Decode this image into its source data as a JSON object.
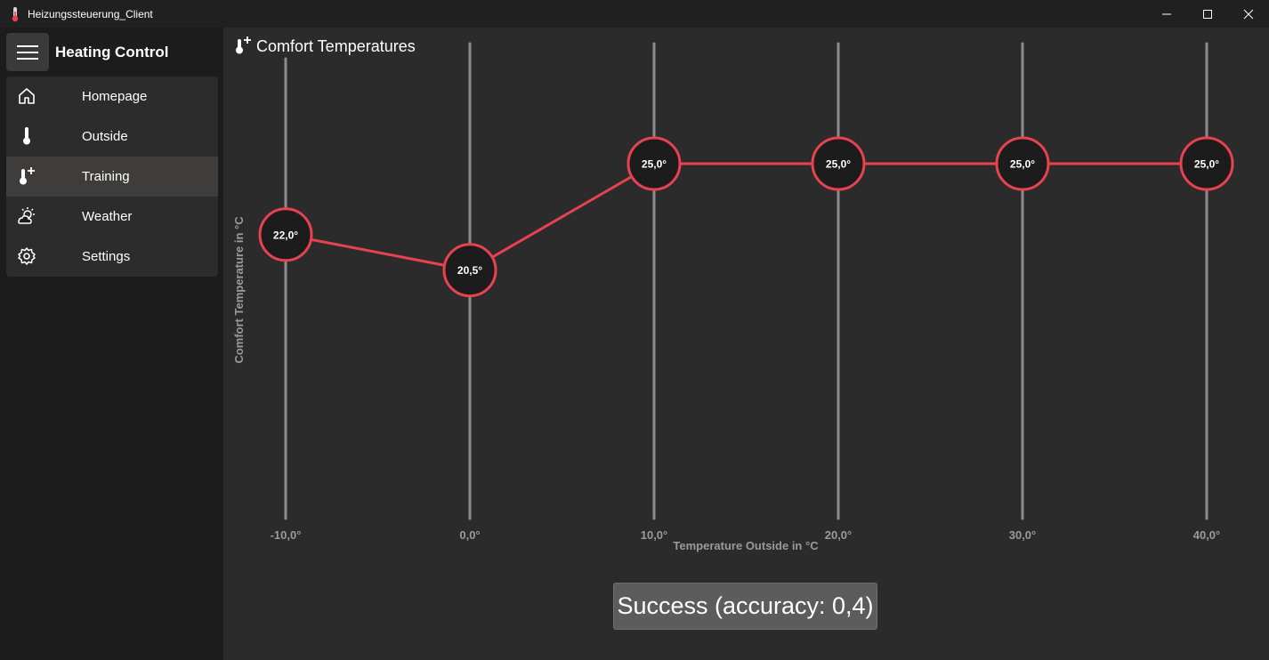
{
  "window": {
    "title": "Heizungssteuerung_Client",
    "controls": [
      "minimize",
      "maximize",
      "close"
    ]
  },
  "sidebar": {
    "app_name": "Heating Control",
    "items": [
      {
        "label": "Homepage",
        "icon": "home-icon",
        "active": false
      },
      {
        "label": "Outside",
        "icon": "thermometer-icon",
        "active": false
      },
      {
        "label": "Training",
        "icon": "thermometer-plus-icon",
        "active": true
      },
      {
        "label": "Weather",
        "icon": "weather-icon",
        "active": false
      },
      {
        "label": "Settings",
        "icon": "gear-icon",
        "active": false
      }
    ]
  },
  "main": {
    "title": "Comfort Temperatures",
    "status": "Success (accuracy: 0,4)"
  },
  "colors": {
    "accent": "#e8414f",
    "track": "#8c8c8c",
    "background": "#2b2b2b"
  },
  "chart_data": {
    "type": "line",
    "x": [
      -10,
      0,
      10,
      20,
      30,
      40
    ],
    "x_tick_labels": [
      "-10,0°",
      "0,0°",
      "10,0°",
      "20,0°",
      "30,0°",
      "40,0°"
    ],
    "series": [
      {
        "values": [
          22.0,
          20.5,
          25.0,
          25.0,
          25.0,
          25.0
        ],
        "point_labels": [
          "22,0°",
          "20,5°",
          "25,0°",
          "25,0°",
          "25,0°",
          "25,0°"
        ]
      }
    ],
    "xlabel": "Temperature Outside in °C",
    "ylabel": "Comfort Temperature in °C",
    "ylim": [
      10,
      30
    ]
  }
}
